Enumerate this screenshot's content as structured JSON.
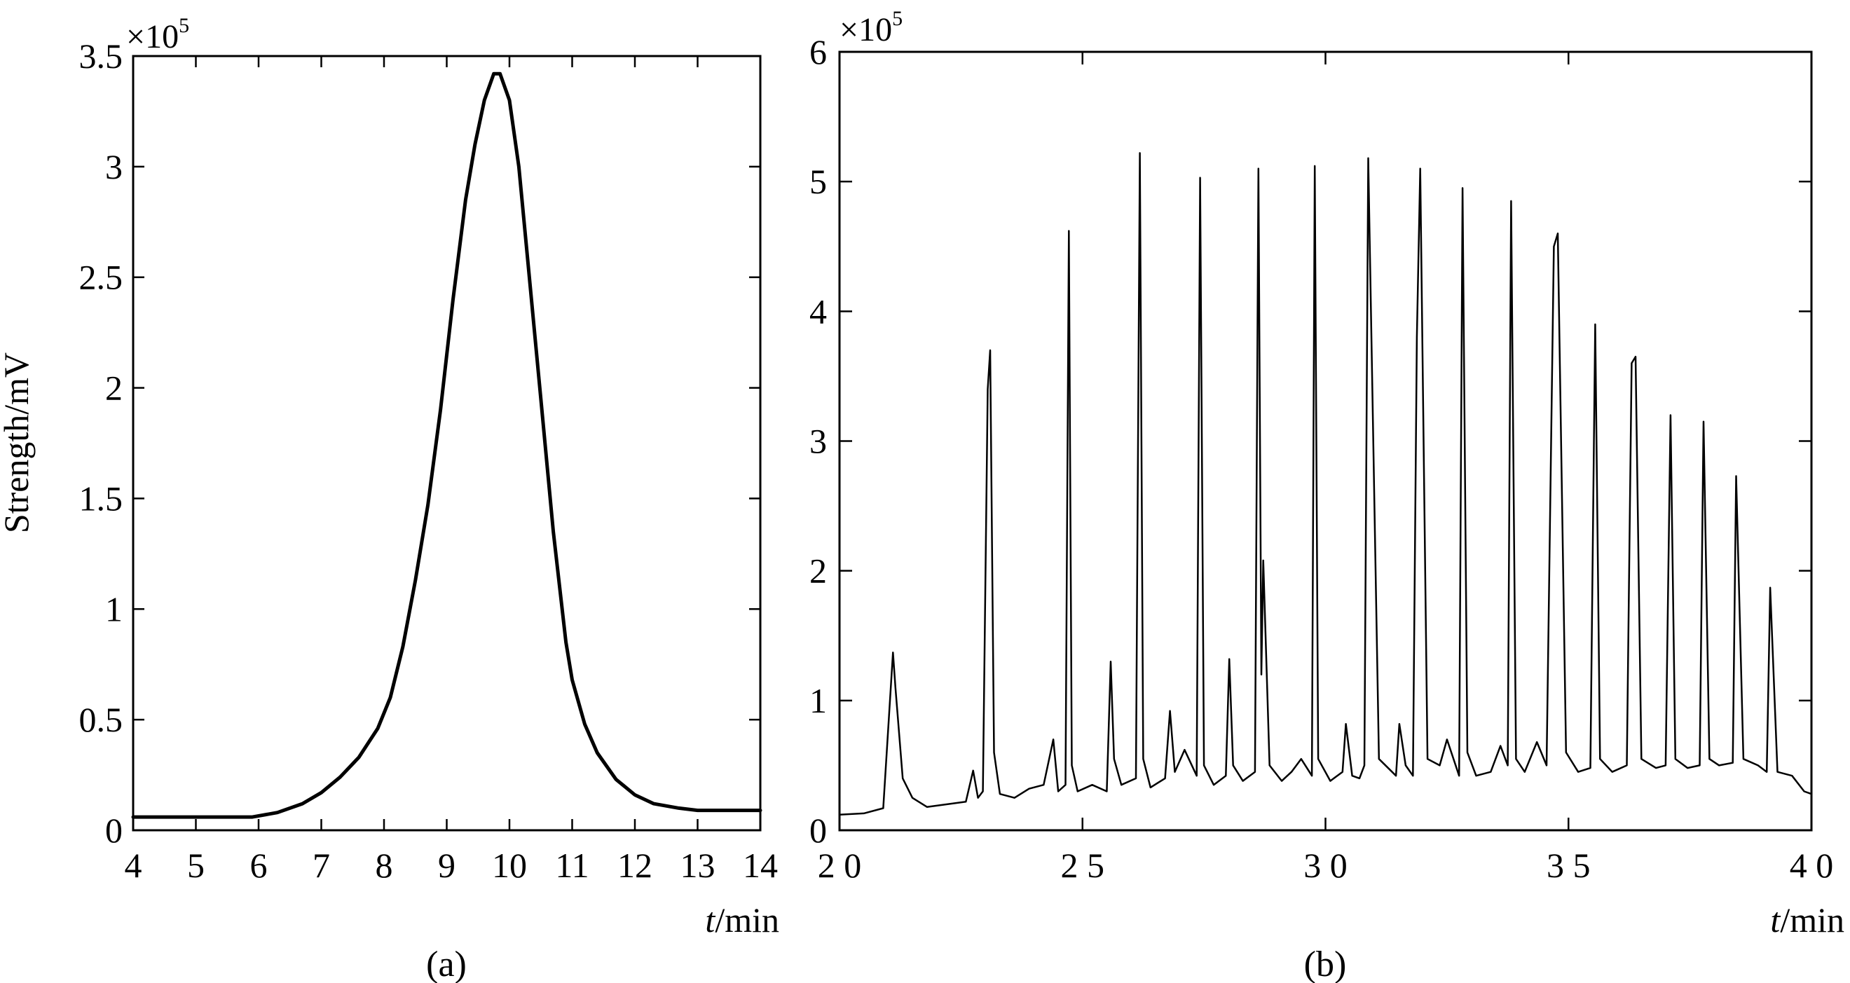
{
  "chart_data": [
    {
      "type": "line",
      "panel_label": "(a)",
      "ylabel": "Strength/mV",
      "xlabel_var": "t",
      "xlabel_unit": "/min",
      "y_multiplier": "×10",
      "y_multiplier_exp": "5",
      "xlim": [
        4,
        14
      ],
      "ylim": [
        0,
        3.5
      ],
      "xticks": [
        4,
        5,
        6,
        7,
        8,
        9,
        10,
        11,
        12,
        13,
        14
      ],
      "xtick_labels": [
        "4",
        "5",
        "6",
        "7",
        "8",
        "9",
        "10",
        "11",
        "12",
        "13",
        "14"
      ],
      "yticks": [
        0,
        0.5,
        1,
        1.5,
        2,
        2.5,
        3,
        3.5
      ],
      "ytick_labels": [
        "0",
        "0.5",
        "1",
        "1.5",
        "2",
        "2.5",
        "3",
        "3.5"
      ],
      "series": [
        {
          "x": [
            4,
            5,
            5.9,
            6.3,
            6.7,
            7.0,
            7.3,
            7.6,
            7.9,
            8.1,
            8.3,
            8.5,
            8.7,
            8.9,
            9.1,
            9.3,
            9.45,
            9.6,
            9.75,
            9.85,
            10.0,
            10.15,
            10.3,
            10.5,
            10.7,
            10.9,
            11.0,
            11.2,
            11.4,
            11.7,
            12.0,
            12.3,
            12.7,
            13.0,
            13.5,
            14.0
          ],
          "values": [
            0.06,
            0.06,
            0.06,
            0.08,
            0.12,
            0.17,
            0.24,
            0.33,
            0.46,
            0.6,
            0.83,
            1.13,
            1.47,
            1.9,
            2.4,
            2.85,
            3.1,
            3.3,
            3.42,
            3.42,
            3.3,
            3.0,
            2.55,
            1.95,
            1.35,
            0.85,
            0.68,
            0.48,
            0.35,
            0.23,
            0.16,
            0.12,
            0.1,
            0.09,
            0.09,
            0.09
          ]
        }
      ]
    },
    {
      "type": "line",
      "panel_label": "(b)",
      "ylabel": "",
      "xlabel_var": "t",
      "xlabel_unit": "/min",
      "y_multiplier": "×10",
      "y_multiplier_exp": "5",
      "xlim": [
        20,
        40
      ],
      "ylim": [
        0,
        6
      ],
      "xticks": [
        20,
        25,
        30,
        35,
        40
      ],
      "xtick_labels": [
        "2 0",
        "2 5",
        "3 0",
        "3 5",
        "4 0"
      ],
      "yticks": [
        0,
        1,
        2,
        3,
        4,
        5,
        6
      ],
      "ytick_labels": [
        "0",
        "1",
        "2",
        "3",
        "4",
        "5",
        "6"
      ],
      "series": [
        {
          "x": [
            20.0,
            20.5,
            20.9,
            21.1,
            21.15,
            21.3,
            21.5,
            21.8,
            22.2,
            22.6,
            22.75,
            22.85,
            22.95,
            23.05,
            23.1,
            23.18,
            23.3,
            23.6,
            23.9,
            24.2,
            24.4,
            24.5,
            24.65,
            24.72,
            24.78,
            24.9,
            25.2,
            25.5,
            25.58,
            25.65,
            25.8,
            26.1,
            26.18,
            26.25,
            26.4,
            26.7,
            26.8,
            26.9,
            27.1,
            27.35,
            27.42,
            27.5,
            27.7,
            27.95,
            28.02,
            28.1,
            28.3,
            28.55,
            28.62,
            28.68,
            28.72,
            28.85,
            29.1,
            29.3,
            29.5,
            29.72,
            29.78,
            29.85,
            30.1,
            30.35,
            30.42,
            30.55,
            30.7,
            30.8,
            30.88,
            31.1,
            31.45,
            31.52,
            31.65,
            31.8,
            31.88,
            31.95,
            32.1,
            32.35,
            32.5,
            32.75,
            32.82,
            32.92,
            33.1,
            33.4,
            33.6,
            33.75,
            33.82,
            33.92,
            34.1,
            34.35,
            34.55,
            34.7,
            34.78,
            34.95,
            35.2,
            35.45,
            35.55,
            35.65,
            35.9,
            36.2,
            36.3,
            36.38,
            36.5,
            36.8,
            37.0,
            37.1,
            37.2,
            37.45,
            37.7,
            37.78,
            37.9,
            38.1,
            38.38,
            38.45,
            38.6,
            38.9,
            39.08,
            39.15,
            39.3,
            39.6,
            39.85,
            40.0
          ],
          "values": [
            0.12,
            0.13,
            0.17,
            1.37,
            1.1,
            0.4,
            0.25,
            0.18,
            0.2,
            0.22,
            0.46,
            0.25,
            0.3,
            3.4,
            3.7,
            0.6,
            0.28,
            0.25,
            0.32,
            0.35,
            0.7,
            0.3,
            0.35,
            4.62,
            0.5,
            0.3,
            0.35,
            0.3,
            1.3,
            0.55,
            0.35,
            0.4,
            5.22,
            0.55,
            0.33,
            0.4,
            0.92,
            0.45,
            0.62,
            0.42,
            5.03,
            0.5,
            0.35,
            0.42,
            1.32,
            0.5,
            0.38,
            0.45,
            5.1,
            1.2,
            2.08,
            0.5,
            0.38,
            0.45,
            0.55,
            0.42,
            5.12,
            0.55,
            0.38,
            0.45,
            0.82,
            0.42,
            0.4,
            0.5,
            5.18,
            0.55,
            0.42,
            0.82,
            0.5,
            0.42,
            3.8,
            5.1,
            0.55,
            0.5,
            0.7,
            0.42,
            4.95,
            0.6,
            0.42,
            0.45,
            0.65,
            0.5,
            4.85,
            0.55,
            0.45,
            0.68,
            0.5,
            4.5,
            4.6,
            0.6,
            0.45,
            0.48,
            3.9,
            0.55,
            0.45,
            0.5,
            3.6,
            3.65,
            0.55,
            0.48,
            0.5,
            3.2,
            0.55,
            0.48,
            0.5,
            3.15,
            0.55,
            0.5,
            0.52,
            2.73,
            0.55,
            0.5,
            0.45,
            1.87,
            0.45,
            0.42,
            0.3,
            0.28
          ]
        }
      ]
    }
  ]
}
